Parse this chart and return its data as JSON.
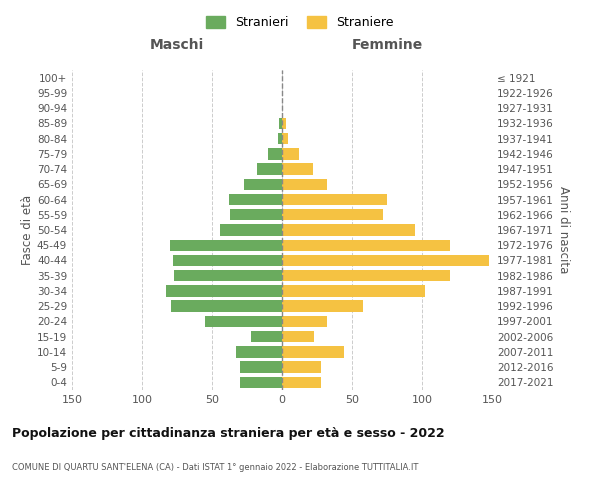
{
  "age_groups_bottom_to_top": [
    "0-4",
    "5-9",
    "10-14",
    "15-19",
    "20-24",
    "25-29",
    "30-34",
    "35-39",
    "40-44",
    "45-49",
    "50-54",
    "55-59",
    "60-64",
    "65-69",
    "70-74",
    "75-79",
    "80-84",
    "85-89",
    "90-94",
    "95-99",
    "100+"
  ],
  "birth_years_bottom_to_top": [
    "2017-2021",
    "2012-2016",
    "2007-2011",
    "2002-2006",
    "1997-2001",
    "1992-1996",
    "1987-1991",
    "1982-1986",
    "1977-1981",
    "1972-1976",
    "1967-1971",
    "1962-1966",
    "1957-1961",
    "1952-1956",
    "1947-1951",
    "1942-1946",
    "1937-1941",
    "1932-1936",
    "1927-1931",
    "1922-1926",
    "≤ 1921"
  ],
  "maschi_bottom_to_top": [
    30,
    30,
    33,
    22,
    55,
    79,
    83,
    77,
    78,
    80,
    44,
    37,
    38,
    27,
    18,
    10,
    3,
    2,
    0,
    0,
    0
  ],
  "femmine_bottom_to_top": [
    28,
    28,
    44,
    23,
    32,
    58,
    102,
    120,
    148,
    120,
    95,
    72,
    75,
    32,
    22,
    12,
    4,
    3,
    0,
    0,
    0
  ],
  "male_color": "#6aab5e",
  "female_color": "#f5c242",
  "dashed_line_color": "#888888",
  "background_color": "#ffffff",
  "grid_color": "#cccccc",
  "title": "Popolazione per cittadinanza straniera per età e sesso - 2022",
  "subtitle": "COMUNE DI QUARTU SANT'ELENA (CA) - Dati ISTAT 1° gennaio 2022 - Elaborazione TUTTITALIA.IT",
  "xlabel_left": "Maschi",
  "xlabel_right": "Femmine",
  "ylabel_left": "Fasce di età",
  "ylabel_right": "Anni di nascita",
  "xlim": 150,
  "legend_male": "Stranieri",
  "legend_female": "Straniere",
  "xtick_labels": [
    "150",
    "100",
    "50",
    "0",
    "50",
    "100",
    "150"
  ],
  "xtick_vals": [
    -150,
    -100,
    -50,
    0,
    50,
    100,
    150
  ]
}
